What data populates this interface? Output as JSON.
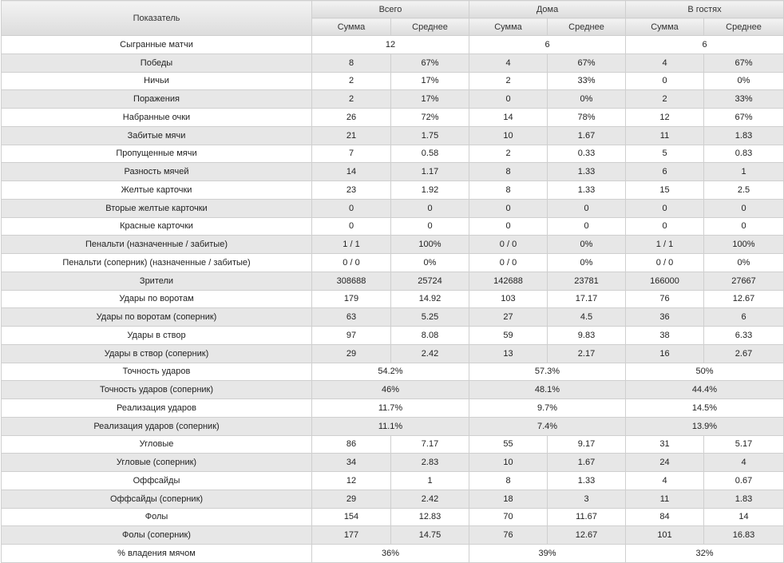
{
  "header": {
    "indicator": "Показатель",
    "groups": [
      "Всего",
      "Дома",
      "В гостях"
    ],
    "sum": "Сумма",
    "avg": "Среднее"
  },
  "rows": [
    {
      "label": "Сыгранные матчи",
      "merged": [
        "12",
        "6",
        "6"
      ]
    },
    {
      "label": "Победы",
      "cells": [
        "8",
        "67%",
        "4",
        "67%",
        "4",
        "67%"
      ]
    },
    {
      "label": "Ничьи",
      "cells": [
        "2",
        "17%",
        "2",
        "33%",
        "0",
        "0%"
      ]
    },
    {
      "label": "Поражения",
      "cells": [
        "2",
        "17%",
        "0",
        "0%",
        "2",
        "33%"
      ]
    },
    {
      "label": "Набранные очки",
      "cells": [
        "26",
        "72%",
        "14",
        "78%",
        "12",
        "67%"
      ]
    },
    {
      "label": "Забитые мячи",
      "cells": [
        "21",
        "1.75",
        "10",
        "1.67",
        "11",
        "1.83"
      ]
    },
    {
      "label": "Пропущенные мячи",
      "cells": [
        "7",
        "0.58",
        "2",
        "0.33",
        "5",
        "0.83"
      ]
    },
    {
      "label": "Разность мячей",
      "cells": [
        "14",
        "1.17",
        "8",
        "1.33",
        "6",
        "1"
      ]
    },
    {
      "label": "Желтые карточки",
      "cells": [
        "23",
        "1.92",
        "8",
        "1.33",
        "15",
        "2.5"
      ]
    },
    {
      "label": "Вторые желтые карточки",
      "cells": [
        "0",
        "0",
        "0",
        "0",
        "0",
        "0"
      ]
    },
    {
      "label": "Красные карточки",
      "cells": [
        "0",
        "0",
        "0",
        "0",
        "0",
        "0"
      ]
    },
    {
      "label": "Пенальти (назначенные / забитые)",
      "cells": [
        "1 / 1",
        "100%",
        "0 / 0",
        "0%",
        "1 / 1",
        "100%"
      ]
    },
    {
      "label": "Пенальти (соперник) (назначенные / забитые)",
      "cells": [
        "0 / 0",
        "0%",
        "0 / 0",
        "0%",
        "0 / 0",
        "0%"
      ]
    },
    {
      "label": "Зрители",
      "cells": [
        "308688",
        "25724",
        "142688",
        "23781",
        "166000",
        "27667"
      ]
    },
    {
      "label": "Удары по воротам",
      "cells": [
        "179",
        "14.92",
        "103",
        "17.17",
        "76",
        "12.67"
      ]
    },
    {
      "label": "Удары по воротам (соперник)",
      "cells": [
        "63",
        "5.25",
        "27",
        "4.5",
        "36",
        "6"
      ]
    },
    {
      "label": "Удары в створ",
      "cells": [
        "97",
        "8.08",
        "59",
        "9.83",
        "38",
        "6.33"
      ]
    },
    {
      "label": "Удары в створ (соперник)",
      "cells": [
        "29",
        "2.42",
        "13",
        "2.17",
        "16",
        "2.67"
      ]
    },
    {
      "label": "Точность ударов",
      "merged": [
        "54.2%",
        "57.3%",
        "50%"
      ]
    },
    {
      "label": "Точность ударов (соперник)",
      "merged": [
        "46%",
        "48.1%",
        "44.4%"
      ]
    },
    {
      "label": "Реализация ударов",
      "merged": [
        "11.7%",
        "9.7%",
        "14.5%"
      ]
    },
    {
      "label": "Реализация ударов (соперник)",
      "merged": [
        "11.1%",
        "7.4%",
        "13.9%"
      ]
    },
    {
      "label": "Угловые",
      "cells": [
        "86",
        "7.17",
        "55",
        "9.17",
        "31",
        "5.17"
      ]
    },
    {
      "label": "Угловые (соперник)",
      "cells": [
        "34",
        "2.83",
        "10",
        "1.67",
        "24",
        "4"
      ]
    },
    {
      "label": "Оффсайды",
      "cells": [
        "12",
        "1",
        "8",
        "1.33",
        "4",
        "0.67"
      ]
    },
    {
      "label": "Оффсайды (соперник)",
      "cells": [
        "29",
        "2.42",
        "18",
        "3",
        "11",
        "1.83"
      ]
    },
    {
      "label": "Фолы",
      "cells": [
        "154",
        "12.83",
        "70",
        "11.67",
        "84",
        "14"
      ]
    },
    {
      "label": "Фолы (соперник)",
      "cells": [
        "177",
        "14.75",
        "76",
        "12.67",
        "101",
        "16.83"
      ]
    },
    {
      "label": "% владения мячом",
      "merged": [
        "36%",
        "39%",
        "32%"
      ]
    }
  ]
}
